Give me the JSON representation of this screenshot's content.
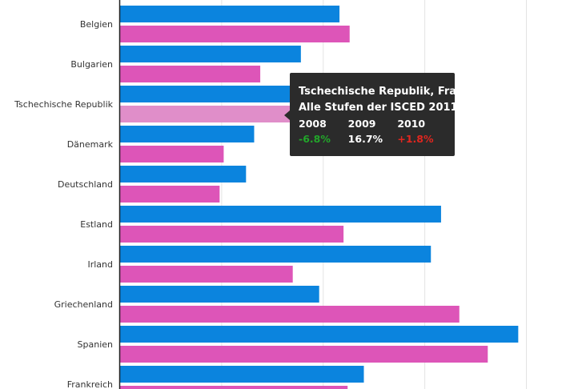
{
  "chart_data": {
    "type": "bar",
    "orientation": "horizontal",
    "categories": [
      "Belgien",
      "Bulgarien",
      "Tschechische Republik",
      "Dänemark",
      "Deutschland",
      "Estland",
      "Irland",
      "Griechenland",
      "Spanien",
      "Frankreich"
    ],
    "series": [
      {
        "color": "#0b84de",
        "values": [
          10.8,
          8.9,
          8.4,
          6.6,
          6.2,
          15.8,
          15.3,
          9.8,
          19.6,
          12.0
        ]
      },
      {
        "color": "#dd55b8",
        "values": [
          11.3,
          6.9,
          8.4,
          5.1,
          4.9,
          11.0,
          8.5,
          16.7,
          18.1,
          11.2
        ]
      }
    ],
    "highlight": {
      "category_index": 2,
      "series_index": 1,
      "color": "#e08ec9"
    },
    "xlim": [
      0,
      22
    ],
    "grid": true
  },
  "tooltip": {
    "title_line1": "Tschechische Republik, Frauen",
    "title_line2": "Alle Stufen der ISCED 2011",
    "years": [
      "2008",
      "2009",
      "2010"
    ],
    "values": [
      "-6.8%",
      "16.7%",
      "+1.8%"
    ]
  }
}
